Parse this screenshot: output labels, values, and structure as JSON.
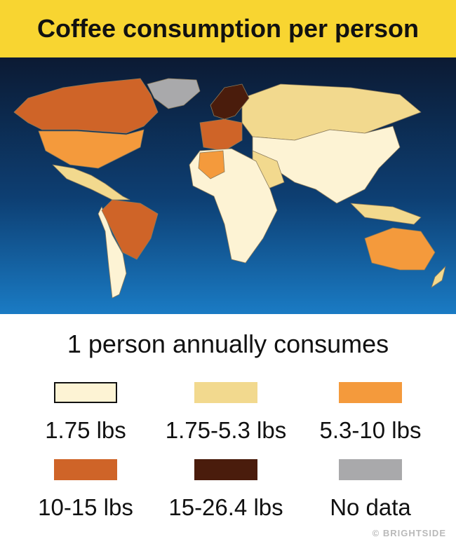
{
  "header": {
    "title": "Coffee consumption per person"
  },
  "legend": {
    "title": "1 person annually consumes",
    "items": [
      {
        "label": "1.75 lbs",
        "color": "#fdf3d4"
      },
      {
        "label": "1.75-5.3 lbs",
        "color": "#f2d98e"
      },
      {
        "label": "5.3-10 lbs",
        "color": "#f49a3c"
      },
      {
        "label": "10-15 lbs",
        "color": "#cf6428"
      },
      {
        "label": "15-26.4 lbs",
        "color": "#4a1c0c"
      },
      {
        "label": "No data",
        "color": "#a9a9ab"
      }
    ]
  },
  "watermark": "© BRIGHTSIDE"
}
